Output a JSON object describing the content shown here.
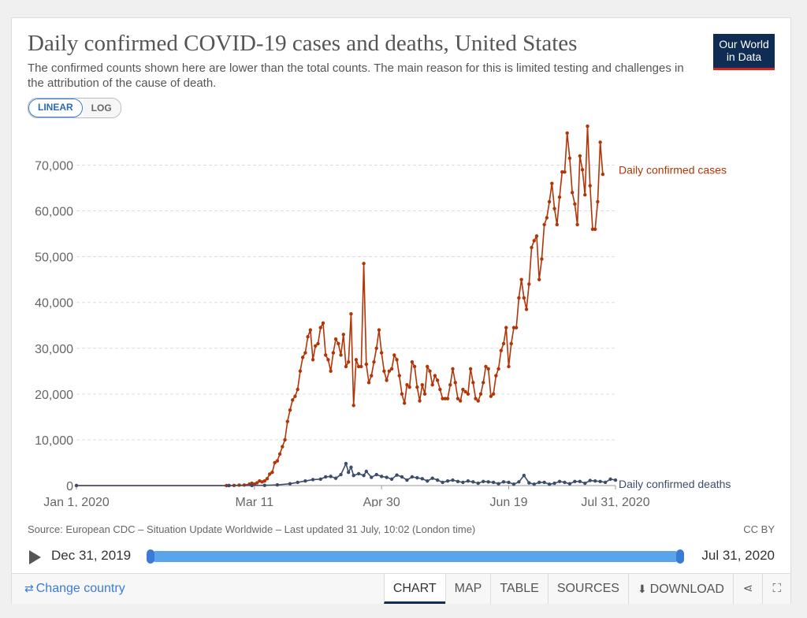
{
  "header": {
    "title": "Daily confirmed COVID-19 cases and deaths, United States",
    "subtitle": "The confirmed counts shown here are lower than the total counts. The main reason for this is limited testing and challenges in the attribution of the cause of death.",
    "logo_line1": "Our World",
    "logo_line2": "in Data"
  },
  "scale_toggle": {
    "linear_label": "LINEAR",
    "log_label": "LOG",
    "selected": "LINEAR"
  },
  "colors": {
    "cases": "#b13507",
    "deaths": "#3e4c6a",
    "accent": "#3a7bd5",
    "brand": "#0f2c55"
  },
  "chart_data": {
    "type": "line",
    "ylim": [
      0,
      78000
    ],
    "grid": true,
    "x_tick_labels": [
      "Jan 1, 2020",
      "Mar 11",
      "Apr 30",
      "Jun 19",
      "Jul 31, 2020"
    ],
    "y_tick_labels": [
      "0",
      "10,000",
      "20,000",
      "30,000",
      "40,000",
      "50,000",
      "60,000",
      "70,000"
    ],
    "y_tick_values": [
      0,
      10000,
      20000,
      30000,
      40000,
      50000,
      60000,
      70000
    ],
    "x": [
      "2020-01-01",
      "2020-03-11",
      "2020-04-30",
      "2020-06-19",
      "2020-07-31"
    ],
    "series": [
      {
        "name": "Daily confirmed cases",
        "points": [
          [
            "2020-01-01",
            0
          ],
          [
            "2020-02-29",
            0
          ],
          [
            "2020-03-01",
            10
          ],
          [
            "2020-03-03",
            30
          ],
          [
            "2020-03-05",
            90
          ],
          [
            "2020-03-07",
            120
          ],
          [
            "2020-03-09",
            300
          ],
          [
            "2020-03-10",
            500
          ],
          [
            "2020-03-11",
            300
          ],
          [
            "2020-03-12",
            600
          ],
          [
            "2020-03-13",
            1000
          ],
          [
            "2020-03-14",
            800
          ],
          [
            "2020-03-15",
            1000
          ],
          [
            "2020-03-16",
            1500
          ],
          [
            "2020-03-17",
            2500
          ],
          [
            "2020-03-18",
            2900
          ],
          [
            "2020-03-19",
            5000
          ],
          [
            "2020-03-20",
            5400
          ],
          [
            "2020-03-21",
            6900
          ],
          [
            "2020-03-22",
            8500
          ],
          [
            "2020-03-23",
            10000
          ],
          [
            "2020-03-24",
            14000
          ],
          [
            "2020-03-25",
            16500
          ],
          [
            "2020-03-26",
            18700
          ],
          [
            "2020-03-27",
            19500
          ],
          [
            "2020-03-28",
            21000
          ],
          [
            "2020-03-29",
            25000
          ],
          [
            "2020-03-30",
            28000
          ],
          [
            "2020-03-31",
            29000
          ],
          [
            "2020-04-01",
            32500
          ],
          [
            "2020-04-02",
            34000
          ],
          [
            "2020-04-03",
            27500
          ],
          [
            "2020-04-04",
            30500
          ],
          [
            "2020-04-05",
            31000
          ],
          [
            "2020-04-06",
            34500
          ],
          [
            "2020-04-07",
            35500
          ],
          [
            "2020-04-08",
            28500
          ],
          [
            "2020-04-09",
            27500
          ],
          [
            "2020-04-10",
            25000
          ],
          [
            "2020-04-11",
            29000
          ],
          [
            "2020-04-12",
            32000
          ],
          [
            "2020-04-13",
            31000
          ],
          [
            "2020-04-14",
            28500
          ],
          [
            "2020-04-15",
            33000
          ],
          [
            "2020-04-16",
            26000
          ],
          [
            "2020-04-17",
            27000
          ],
          [
            "2020-04-18",
            37500
          ],
          [
            "2020-04-19",
            17500
          ],
          [
            "2020-04-20",
            27500
          ],
          [
            "2020-04-21",
            26000
          ],
          [
            "2020-04-22",
            26000
          ],
          [
            "2020-04-23",
            48500
          ],
          [
            "2020-04-24",
            26500
          ],
          [
            "2020-04-25",
            22500
          ],
          [
            "2020-04-26",
            24000
          ],
          [
            "2020-04-27",
            27000
          ],
          [
            "2020-04-28",
            30000
          ],
          [
            "2020-04-29",
            34000
          ],
          [
            "2020-04-30",
            29000
          ],
          [
            "2020-05-01",
            25000
          ],
          [
            "2020-05-02",
            23000
          ],
          [
            "2020-05-03",
            25000
          ],
          [
            "2020-05-04",
            25500
          ],
          [
            "2020-05-05",
            28500
          ],
          [
            "2020-05-06",
            27500
          ],
          [
            "2020-05-07",
            24000
          ],
          [
            "2020-05-08",
            20000
          ],
          [
            "2020-05-09",
            18000
          ],
          [
            "2020-05-10",
            22000
          ],
          [
            "2020-05-11",
            21500
          ],
          [
            "2020-05-12",
            27000
          ],
          [
            "2020-05-13",
            26000
          ],
          [
            "2020-05-14",
            21500
          ],
          [
            "2020-05-15",
            18500
          ],
          [
            "2020-05-16",
            22000
          ],
          [
            "2020-05-17",
            20000
          ],
          [
            "2020-05-18",
            26000
          ],
          [
            "2020-05-19",
            25000
          ],
          [
            "2020-05-20",
            22000
          ],
          [
            "2020-05-21",
            24000
          ],
          [
            "2020-05-22",
            23000
          ],
          [
            "2020-05-23",
            21000
          ],
          [
            "2020-05-24",
            19000
          ],
          [
            "2020-05-25",
            19000
          ],
          [
            "2020-05-26",
            19000
          ],
          [
            "2020-05-27",
            22000
          ],
          [
            "2020-05-28",
            25500
          ],
          [
            "2020-05-29",
            22500
          ],
          [
            "2020-05-30",
            19000
          ],
          [
            "2020-05-31",
            18500
          ],
          [
            "2020-06-01",
            21000
          ],
          [
            "2020-06-02",
            20500
          ],
          [
            "2020-06-03",
            20000
          ],
          [
            "2020-06-04",
            25500
          ],
          [
            "2020-06-05",
            22500
          ],
          [
            "2020-06-06",
            19000
          ],
          [
            "2020-06-07",
            18500
          ],
          [
            "2020-06-08",
            20000
          ],
          [
            "2020-06-09",
            22500
          ],
          [
            "2020-06-10",
            26000
          ],
          [
            "2020-06-11",
            25500
          ],
          [
            "2020-06-12",
            19500
          ],
          [
            "2020-06-13",
            20000
          ],
          [
            "2020-06-14",
            24000
          ],
          [
            "2020-06-15",
            25500
          ],
          [
            "2020-06-16",
            29500
          ],
          [
            "2020-06-17",
            31000
          ],
          [
            "2020-06-18",
            34500
          ],
          [
            "2020-06-19",
            26000
          ],
          [
            "2020-06-20",
            31000
          ],
          [
            "2020-06-21",
            34500
          ],
          [
            "2020-06-22",
            34500
          ],
          [
            "2020-06-23",
            41000
          ],
          [
            "2020-06-24",
            45000
          ],
          [
            "2020-06-25",
            41000
          ],
          [
            "2020-06-26",
            38500
          ],
          [
            "2020-06-27",
            44000
          ],
          [
            "2020-06-28",
            52000
          ],
          [
            "2020-06-29",
            53500
          ],
          [
            "2020-06-30",
            54500
          ],
          [
            "2020-07-01",
            45000
          ],
          [
            "2020-07-02",
            49500
          ],
          [
            "2020-07-03",
            57000
          ],
          [
            "2020-07-04",
            58500
          ],
          [
            "2020-07-05",
            62000
          ],
          [
            "2020-07-06",
            66000
          ],
          [
            "2020-07-07",
            60500
          ],
          [
            "2020-07-08",
            57000
          ],
          [
            "2020-07-09",
            63000
          ],
          [
            "2020-07-10",
            68500
          ],
          [
            "2020-07-11",
            68500
          ],
          [
            "2020-07-12",
            77000
          ],
          [
            "2020-07-13",
            71500
          ],
          [
            "2020-07-14",
            64000
          ],
          [
            "2020-07-15",
            61500
          ],
          [
            "2020-07-16",
            57000
          ],
          [
            "2020-07-17",
            72000
          ],
          [
            "2020-07-18",
            69000
          ],
          [
            "2020-07-19",
            63500
          ],
          [
            "2020-07-20",
            78500
          ],
          [
            "2020-07-21",
            65500
          ],
          [
            "2020-07-22",
            56000
          ],
          [
            "2020-07-23",
            56000
          ],
          [
            "2020-07-24",
            62000
          ],
          [
            "2020-07-25",
            75000
          ],
          [
            "2020-07-26",
            68000
          ]
        ]
      },
      {
        "name": "Daily confirmed deaths",
        "points": [
          [
            "2020-01-01",
            0
          ],
          [
            "2020-03-01",
            0
          ],
          [
            "2020-03-10",
            20
          ],
          [
            "2020-03-15",
            50
          ],
          [
            "2020-03-20",
            150
          ],
          [
            "2020-03-25",
            400
          ],
          [
            "2020-03-28",
            700
          ],
          [
            "2020-03-31",
            1000
          ],
          [
            "2020-04-03",
            1300
          ],
          [
            "2020-04-06",
            1400
          ],
          [
            "2020-04-08",
            1900
          ],
          [
            "2020-04-10",
            2000
          ],
          [
            "2020-04-12",
            1600
          ],
          [
            "2020-04-14",
            2400
          ],
          [
            "2020-04-16",
            4800
          ],
          [
            "2020-04-17",
            2900
          ],
          [
            "2020-04-18",
            4000
          ],
          [
            "2020-04-19",
            2200
          ],
          [
            "2020-04-21",
            2600
          ],
          [
            "2020-04-23",
            2200
          ],
          [
            "2020-04-24",
            3100
          ],
          [
            "2020-04-26",
            1800
          ],
          [
            "2020-04-28",
            2400
          ],
          [
            "2020-04-30",
            2000
          ],
          [
            "2020-05-02",
            1800
          ],
          [
            "2020-05-04",
            1400
          ],
          [
            "2020-05-06",
            2300
          ],
          [
            "2020-05-08",
            1900
          ],
          [
            "2020-05-10",
            1200
          ],
          [
            "2020-05-12",
            1900
          ],
          [
            "2020-05-14",
            1700
          ],
          [
            "2020-05-16",
            1500
          ],
          [
            "2020-05-18",
            1000
          ],
          [
            "2020-05-20",
            1600
          ],
          [
            "2020-05-22",
            1200
          ],
          [
            "2020-05-24",
            700
          ],
          [
            "2020-05-26",
            1000
          ],
          [
            "2020-05-28",
            1200
          ],
          [
            "2020-05-30",
            900
          ],
          [
            "2020-06-01",
            700
          ],
          [
            "2020-06-03",
            1000
          ],
          [
            "2020-06-05",
            800
          ],
          [
            "2020-06-07",
            500
          ],
          [
            "2020-06-09",
            900
          ],
          [
            "2020-06-11",
            800
          ],
          [
            "2020-06-13",
            700
          ],
          [
            "2020-06-15",
            400
          ],
          [
            "2020-06-17",
            800
          ],
          [
            "2020-06-19",
            700
          ],
          [
            "2020-06-21",
            300
          ],
          [
            "2020-06-23",
            800
          ],
          [
            "2020-06-25",
            2200
          ],
          [
            "2020-06-27",
            600
          ],
          [
            "2020-06-29",
            300
          ],
          [
            "2020-07-01",
            700
          ],
          [
            "2020-07-03",
            700
          ],
          [
            "2020-07-05",
            300
          ],
          [
            "2020-07-07",
            500
          ],
          [
            "2020-07-09",
            900
          ],
          [
            "2020-07-11",
            700
          ],
          [
            "2020-07-13",
            400
          ],
          [
            "2020-07-15",
            900
          ],
          [
            "2020-07-17",
            900
          ],
          [
            "2020-07-19",
            500
          ],
          [
            "2020-07-21",
            1100
          ],
          [
            "2020-07-23",
            1000
          ],
          [
            "2020-07-25",
            900
          ],
          [
            "2020-07-27",
            700
          ],
          [
            "2020-07-29",
            1400
          ],
          [
            "2020-07-31",
            1200
          ]
        ]
      }
    ]
  },
  "source": {
    "text": "Source: European CDC – Situation Update Worldwide – Last updated 31 July, 10:02 (London time)",
    "license": "CC BY"
  },
  "timeline": {
    "start_label": "Dec 31, 2019",
    "end_label": "Jul 31, 2020",
    "start_value": 0,
    "end_value": 1
  },
  "footer": {
    "change_country": "Change country",
    "tabs": [
      "CHART",
      "MAP",
      "TABLE",
      "SOURCES",
      "DOWNLOAD"
    ],
    "active_tab": "CHART"
  }
}
